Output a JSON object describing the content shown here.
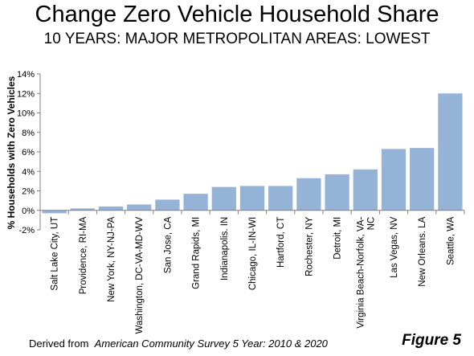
{
  "header": {
    "title": "Change Zero Vehicle Household Share",
    "subtitle": "10 YEARS: MAJOR METROPOLITAN AREAS: LOWEST"
  },
  "footer": {
    "source_prefix": "Derived from",
    "source_title": "American Community Survey 5 Year: 2010 & 2020",
    "figure_label": "Figure 5"
  },
  "chart_data": {
    "type": "bar",
    "title": "Change Zero Vehicle Household Share",
    "subtitle": "10 YEARS: MAJOR METROPOLITAN AREAS: LOWEST",
    "ylabel": "% Households with Zero Vehicles",
    "xlabel": "",
    "ylim": [
      -2,
      14
    ],
    "yticks": [
      -2,
      0,
      2,
      4,
      6,
      8,
      10,
      12,
      14
    ],
    "ytick_labels": [
      "-2%",
      "0%",
      "2%",
      "4%",
      "6%",
      "8%",
      "10%",
      "12%",
      "14%"
    ],
    "grid": false,
    "legend": "none",
    "bar_color": "#95b3d7",
    "categories": [
      "Salt Lake City, UT",
      "Providence, RI-MA",
      "New York, NY-NJ-PA",
      "Washington, DC-VA-MD-WV",
      "San Jose, CA",
      "Grand Rapids, MI",
      "Indianapolis. IN",
      "Chicago, IL-IN-WI",
      "Hartford, CT",
      "Rochester, NY",
      "Detroit, MI",
      "Virginia Beach-Norfolk, VA-NC",
      "Las Vegas, NV",
      "New Orleans. LA",
      "Seattle, WA"
    ],
    "category_label_lines": [
      [
        "Salt Lake City, UT"
      ],
      [
        "Providence, RI-MA"
      ],
      [
        "New York, NY-NJ-PA"
      ],
      [
        "Washington, DC-VA-MD-WV"
      ],
      [
        "San Jose, CA"
      ],
      [
        "Grand Rapids, MI"
      ],
      [
        "Indianapolis. IN"
      ],
      [
        "Chicago, IL-IN-WI"
      ],
      [
        "Hartford, CT"
      ],
      [
        "Rochester, NY"
      ],
      [
        "Detroit, MI"
      ],
      [
        "Virginia Beach-Norfolk, VA-",
        "NC"
      ],
      [
        "Las Vegas, NV"
      ],
      [
        "New Orleans. LA"
      ],
      [
        "Seattle, WA"
      ]
    ],
    "values": [
      -0.3,
      0.2,
      0.4,
      0.6,
      1.1,
      1.7,
      2.4,
      2.5,
      2.5,
      3.3,
      3.7,
      4.2,
      6.3,
      6.4,
      12.0
    ]
  }
}
